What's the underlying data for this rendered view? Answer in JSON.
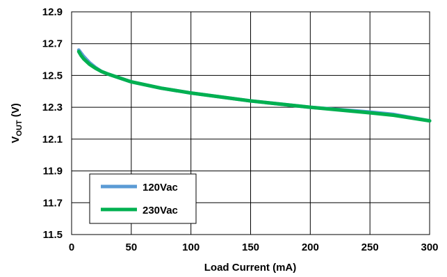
{
  "chart_data": {
    "type": "line",
    "title": "",
    "xlabel": "Load Current (mA)",
    "ylabel_main": "V",
    "ylabel_sub": "OUT",
    "ylabel_unit": " (V)",
    "xlim": [
      0,
      300
    ],
    "ylim": [
      11.5,
      12.9
    ],
    "x_ticks": [
      0,
      50,
      100,
      150,
      200,
      250,
      300
    ],
    "x_tick_labels": [
      "0",
      "50",
      "100",
      "150",
      "200",
      "250",
      "300"
    ],
    "y_ticks": [
      11.5,
      11.7,
      11.9,
      12.1,
      12.3,
      12.5,
      12.7,
      12.9
    ],
    "y_tick_labels": [
      "11.5",
      "11.7",
      "11.9",
      "12.1",
      "12.3",
      "12.5",
      "12.7",
      "12.9"
    ],
    "grid": true,
    "legend_position": "bottom-left",
    "series": [
      {
        "name": "120Vac",
        "color": "#5b9bd5",
        "x": [
          6,
          8,
          10,
          15,
          20,
          25,
          30,
          40,
          50,
          75,
          100,
          150,
          200,
          250,
          270,
          300
        ],
        "y": [
          12.66,
          12.64,
          12.62,
          12.58,
          12.55,
          12.525,
          12.51,
          12.485,
          12.46,
          12.42,
          12.39,
          12.34,
          12.3,
          12.27,
          12.255,
          12.215
        ]
      },
      {
        "name": "230Vac",
        "color": "#00b050",
        "x": [
          6,
          8,
          10,
          15,
          20,
          25,
          30,
          40,
          50,
          75,
          100,
          150,
          200,
          250,
          270,
          300
        ],
        "y": [
          12.65,
          12.625,
          12.605,
          12.57,
          12.545,
          12.525,
          12.51,
          12.485,
          12.46,
          12.42,
          12.39,
          12.34,
          12.3,
          12.265,
          12.25,
          12.215
        ]
      }
    ]
  }
}
